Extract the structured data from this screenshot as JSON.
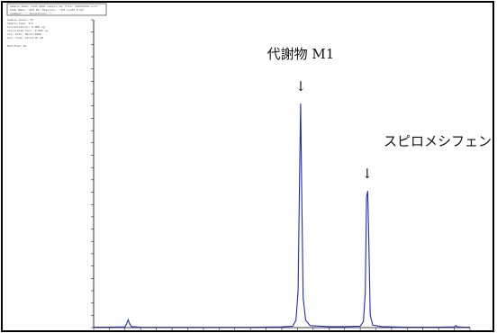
{
  "chart_data": {
    "type": "line",
    "title": "",
    "xlabel": "",
    "ylabel": "",
    "xlim": [
      0,
      12
    ],
    "ylim": [
      0,
      12.5
    ],
    "x": [
      0.0,
      0.5,
      1.0,
      1.05,
      1.1,
      1.15,
      1.2,
      1.5,
      3.0,
      5.0,
      6.0,
      6.35,
      6.45,
      6.52,
      6.56,
      6.6,
      6.64,
      6.68,
      6.76,
      6.9,
      7.5,
      8.0,
      8.5,
      8.6,
      8.66,
      8.7,
      8.74,
      8.78,
      8.82,
      8.9,
      9.2,
      10.0,
      11.0,
      11.5,
      11.55,
      11.6,
      11.8,
      12.0
    ],
    "y": [
      0.02,
      0.02,
      0.03,
      0.15,
      0.32,
      0.15,
      0.04,
      0.02,
      0.01,
      0.01,
      0.03,
      0.06,
      0.3,
      1.5,
      5.5,
      9.1,
      5.0,
      1.2,
      0.3,
      0.08,
      0.04,
      0.04,
      0.06,
      0.25,
      1.4,
      5.3,
      5.55,
      3.2,
      0.5,
      0.1,
      0.04,
      0.02,
      0.02,
      0.03,
      0.08,
      0.03,
      0.02,
      0.02
    ],
    "peaks": [
      {
        "label": "代謝物 M1",
        "x": 6.6,
        "y": 9.1
      },
      {
        "label": "スピロメシフェン",
        "x": 8.72,
        "y": 5.55
      }
    ],
    "line_color": "#1f2db8",
    "arrow_glyph": "↓"
  },
  "header_box": {
    "line1": "Sample Name: 0101-0001    Sample ID:    File: SPIRO0001.wiff",
    "line2": "Peak Name: \"SPI M1\"    Mass(es): \"375.1/253.0 Da\"",
    "line3": "Comment: \"\"    Annotation: \"\""
  },
  "side_info": [
    "Sample Index:   34",
    "Sample Type:    Std",
    "Concentration:  0.000  ng",
    "Calculated Conc:  0.000  ng",
    "Acq. Date:   08/27/2008",
    "Acq. Time:   10:31:45 AM",
    "Modified:    No"
  ]
}
